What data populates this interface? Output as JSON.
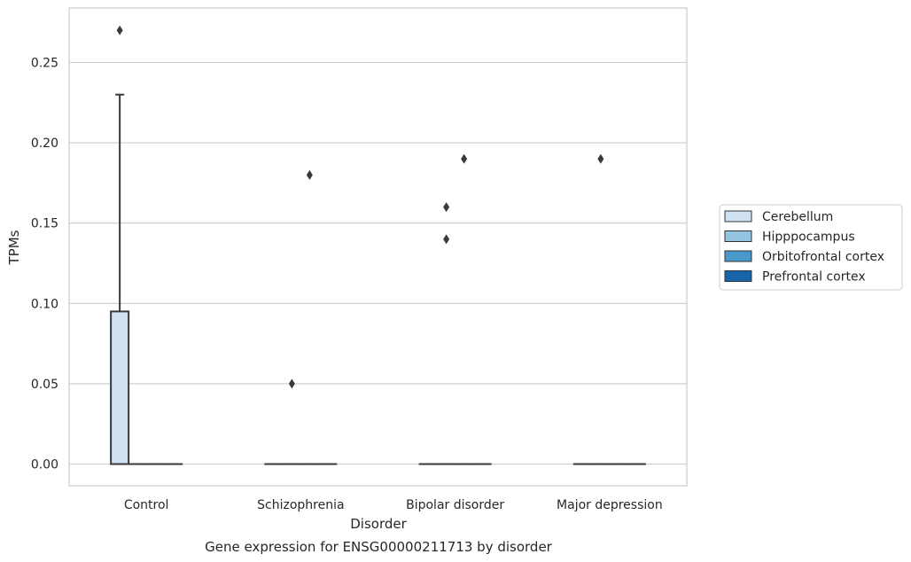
{
  "chart_data": {
    "type": "box",
    "categories": [
      "Control",
      "Schizophrenia",
      "Bipolar disorder",
      "Major depression"
    ],
    "hue_order": [
      "Cerebellum",
      "Hipppocampus",
      "Orbitofrontal cortex",
      "Prefrontal cortex"
    ],
    "colors": {
      "Cerebellum": "#d0e1f2",
      "Hipppocampus": "#94c4df",
      "Orbitofrontal cortex": "#4a98c9",
      "Prefrontal cortex": "#1764ab"
    },
    "xlabel": "Disorder",
    "ylabel": "TPMs",
    "caption": "Gene expression for ENSG00000211713 by disorder",
    "ylim": [
      -0.013,
      0.283
    ],
    "yticks": [
      0.0,
      0.05,
      0.1,
      0.15,
      0.2,
      0.25
    ],
    "ytick_labels": [
      "0.00",
      "0.05",
      "0.10",
      "0.15",
      "0.20",
      "0.25"
    ],
    "grid": true,
    "legend_position": "right, outside plot",
    "boxes": [
      {
        "category": "Control",
        "series": "Cerebellum",
        "q1": 0.0,
        "median": 0.0,
        "q3": 0.095,
        "whisker_low": 0.0,
        "whisker_high": 0.23,
        "fliers": [
          0.27
        ]
      },
      {
        "category": "Control",
        "series": "Hipppocampus",
        "q1": 0.0,
        "median": 0.0,
        "q3": 0.0,
        "whisker_low": 0.0,
        "whisker_high": 0.0,
        "fliers": []
      },
      {
        "category": "Control",
        "series": "Orbitofrontal cortex",
        "q1": 0.0,
        "median": 0.0,
        "q3": 0.0,
        "whisker_low": 0.0,
        "whisker_high": 0.0,
        "fliers": []
      },
      {
        "category": "Control",
        "series": "Prefrontal cortex",
        "q1": 0.0,
        "median": 0.0,
        "q3": 0.0,
        "whisker_low": 0.0,
        "whisker_high": 0.0,
        "fliers": []
      },
      {
        "category": "Schizophrenia",
        "series": "Cerebellum",
        "q1": 0.0,
        "median": 0.0,
        "q3": 0.0,
        "whisker_low": 0.0,
        "whisker_high": 0.0,
        "fliers": []
      },
      {
        "category": "Schizophrenia",
        "series": "Hipppocampus",
        "q1": 0.0,
        "median": 0.0,
        "q3": 0.0,
        "whisker_low": 0.0,
        "whisker_high": 0.0,
        "fliers": [
          0.05
        ]
      },
      {
        "category": "Schizophrenia",
        "series": "Orbitofrontal cortex",
        "q1": 0.0,
        "median": 0.0,
        "q3": 0.0,
        "whisker_low": 0.0,
        "whisker_high": 0.0,
        "fliers": [
          0.18
        ]
      },
      {
        "category": "Schizophrenia",
        "series": "Prefrontal cortex",
        "q1": 0.0,
        "median": 0.0,
        "q3": 0.0,
        "whisker_low": 0.0,
        "whisker_high": 0.0,
        "fliers": []
      },
      {
        "category": "Bipolar disorder",
        "series": "Cerebellum",
        "q1": 0.0,
        "median": 0.0,
        "q3": 0.0,
        "whisker_low": 0.0,
        "whisker_high": 0.0,
        "fliers": []
      },
      {
        "category": "Bipolar disorder",
        "series": "Hipppocampus",
        "q1": 0.0,
        "median": 0.0,
        "q3": 0.0,
        "whisker_low": 0.0,
        "whisker_high": 0.0,
        "fliers": [
          0.16,
          0.14
        ]
      },
      {
        "category": "Bipolar disorder",
        "series": "Orbitofrontal cortex",
        "q1": 0.0,
        "median": 0.0,
        "q3": 0.0,
        "whisker_low": 0.0,
        "whisker_high": 0.0,
        "fliers": [
          0.19
        ]
      },
      {
        "category": "Bipolar disorder",
        "series": "Prefrontal cortex",
        "q1": 0.0,
        "median": 0.0,
        "q3": 0.0,
        "whisker_low": 0.0,
        "whisker_high": 0.0,
        "fliers": []
      },
      {
        "category": "Major depression",
        "series": "Cerebellum",
        "q1": 0.0,
        "median": 0.0,
        "q3": 0.0,
        "whisker_low": 0.0,
        "whisker_high": 0.0,
        "fliers": []
      },
      {
        "category": "Major depression",
        "series": "Hipppocampus",
        "q1": 0.0,
        "median": 0.0,
        "q3": 0.0,
        "whisker_low": 0.0,
        "whisker_high": 0.0,
        "fliers": [
          0.19
        ]
      },
      {
        "category": "Major depression",
        "series": "Orbitofrontal cortex",
        "q1": 0.0,
        "median": 0.0,
        "q3": 0.0,
        "whisker_low": 0.0,
        "whisker_high": 0.0,
        "fliers": []
      },
      {
        "category": "Major depression",
        "series": "Prefrontal cortex",
        "q1": 0.0,
        "median": 0.0,
        "q3": 0.0,
        "whisker_low": 0.0,
        "whisker_high": 0.0,
        "fliers": []
      }
    ]
  }
}
